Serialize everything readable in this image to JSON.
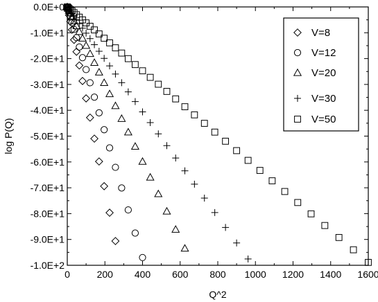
{
  "chart_data": {
    "type": "scatter",
    "xlabel": "Q^2",
    "ylabel": "log P(Q)",
    "xlim": [
      0,
      1600
    ],
    "ylim": [
      -100,
      0
    ],
    "x_ticks": [
      0,
      200,
      400,
      600,
      800,
      1000,
      1200,
      1400,
      1600
    ],
    "x_tick_labels": [
      "0",
      "200",
      "400",
      "600",
      "800",
      "1000",
      "1200",
      "1400",
      "1600"
    ],
    "y_ticks": [
      0,
      -10,
      -20,
      -30,
      -40,
      -50,
      -60,
      -70,
      -80,
      -90,
      -100
    ],
    "y_tick_labels": [
      "0.0E+0",
      "-1.0E+1",
      "-2.0E+1",
      "-3.0E+1",
      "-4.0E+1",
      "-5.0E+1",
      "-6.0E+1",
      "-7.0E+1",
      "-8.0E+1",
      "-9.0E+1",
      "-1.0E+2"
    ],
    "grid": false,
    "legend_position": "top-right",
    "series": [
      {
        "name": "V=8",
        "marker": "diamond",
        "slope": -0.354,
        "x": [
          0,
          1,
          4,
          9,
          16,
          25,
          36,
          49,
          64,
          81,
          100,
          121,
          144,
          169,
          196,
          225,
          256
        ]
      },
      {
        "name": "V=12",
        "marker": "circle",
        "slope": -0.2425,
        "x": [
          0,
          1,
          4,
          9,
          16,
          25,
          36,
          49,
          64,
          81,
          100,
          121,
          144,
          169,
          196,
          225,
          256,
          289,
          324,
          361,
          400
        ]
      },
      {
        "name": "V=20",
        "marker": "triangle",
        "slope": -0.1495,
        "x": [
          0,
          1,
          4,
          9,
          16,
          25,
          36,
          49,
          64,
          81,
          100,
          121,
          144,
          169,
          196,
          225,
          256,
          289,
          324,
          361,
          400,
          441,
          484,
          529,
          576,
          625
        ]
      },
      {
        "name": "V=30",
        "marker": "plus",
        "slope": -0.1015,
        "x": [
          0,
          1,
          4,
          9,
          16,
          25,
          36,
          49,
          64,
          81,
          100,
          121,
          144,
          169,
          196,
          225,
          256,
          289,
          324,
          361,
          400,
          441,
          484,
          529,
          576,
          625,
          676,
          729,
          784,
          841,
          900,
          961
        ]
      },
      {
        "name": "V=50",
        "marker": "square",
        "slope": -0.0618,
        "x": [
          0,
          1,
          4,
          9,
          16,
          25,
          36,
          49,
          64,
          81,
          100,
          121,
          144,
          169,
          196,
          225,
          256,
          289,
          324,
          361,
          400,
          441,
          484,
          529,
          576,
          625,
          676,
          729,
          784,
          841,
          900,
          961,
          1024,
          1089,
          1156,
          1225,
          1296,
          1369,
          1444,
          1521,
          1600
        ]
      }
    ]
  }
}
